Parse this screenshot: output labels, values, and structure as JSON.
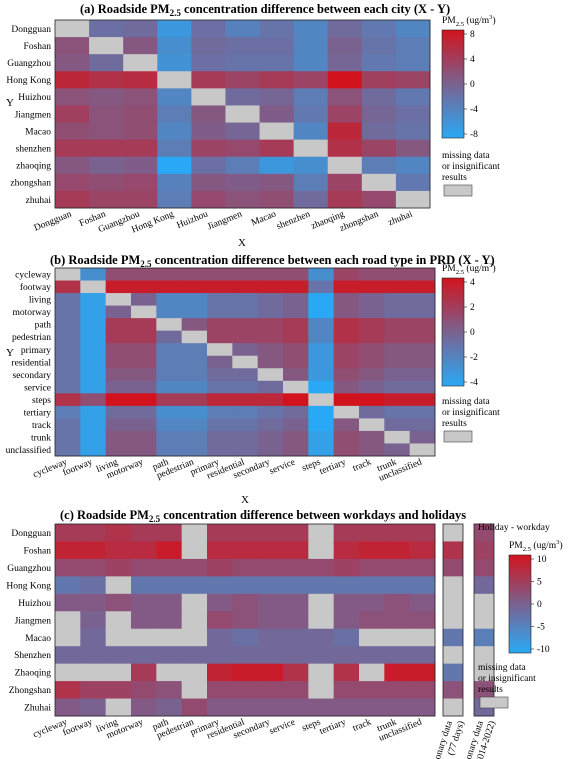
{
  "colors": {
    "missing": "#c8c8c8",
    "scale_low": "#29a9f5",
    "scale_mid": "#7a6290",
    "scale_high": "#d2131d"
  },
  "chart_data": [
    {
      "type": "heatmap",
      "panel": "(a)",
      "title_parts": [
        "(a) Roadside PM",
        "2.5",
        " concentration difference between each city (X - Y)"
      ],
      "xlabel": "X",
      "ylabel": "Y",
      "x": [
        "Dongguan",
        "Foshan",
        "Guangzhou",
        "Hong Kong",
        "Huizhou",
        "Jiangmen",
        "Macao",
        "shenzhen",
        "zhaoqing",
        "zhongshan",
        "zhuhai"
      ],
      "y": [
        "Dongguan",
        "Foshan",
        "Guangzhou",
        "Hong Kong",
        "Huizhou",
        "Jiangmen",
        "Macao",
        "shenzhen",
        "zhaoqing",
        "zhongshan",
        "zhuhai"
      ],
      "values": [
        [
          null,
          -1.5,
          -1,
          -6,
          -1.5,
          -3.5,
          -2,
          -4,
          -1,
          -2.5,
          -4
        ],
        [
          1.5,
          null,
          1,
          -5,
          -1,
          -1.5,
          -1.5,
          -4,
          0,
          -2,
          -3
        ],
        [
          1,
          -1,
          null,
          -5.5,
          -1.5,
          -2,
          -2,
          -4,
          -0.5,
          -2.5,
          -3
        ],
        [
          6,
          5,
          5.5,
          null,
          4,
          3,
          4,
          3,
          8,
          3.5,
          3
        ],
        [
          1.5,
          1,
          1.5,
          -4,
          null,
          -1,
          -0.5,
          -3,
          1.5,
          -1,
          -2.5
        ],
        [
          3.5,
          1.5,
          2,
          -3,
          1,
          null,
          0.5,
          -2.5,
          3,
          -0.5,
          -1.5
        ],
        [
          2,
          1.5,
          2,
          -4,
          0.5,
          -0.5,
          null,
          -4,
          6,
          -1,
          -2
        ],
        [
          4,
          4,
          4,
          -3,
          3,
          2.5,
          4,
          null,
          5,
          3,
          1
        ],
        [
          1,
          0,
          0.5,
          -8,
          -1.5,
          -3,
          -6,
          -5,
          null,
          -3,
          -4
        ],
        [
          2.5,
          2,
          2.5,
          -3.5,
          1,
          0.5,
          1,
          -3,
          3,
          null,
          -2.5
        ],
        [
          4,
          3,
          3,
          -3,
          2.5,
          1.5,
          2,
          -1,
          4,
          2.5,
          null
        ]
      ],
      "colorbar": {
        "label_parts": [
          "PM",
          "2.5",
          " (ug/m",
          "3",
          ")"
        ],
        "ticks": [
          "8",
          "4",
          "0",
          "-4",
          "-8"
        ],
        "range": [
          -8,
          8
        ]
      },
      "legend_missing": [
        "missing data",
        "or insignificant",
        "results"
      ]
    },
    {
      "type": "heatmap",
      "panel": "(b)",
      "title_parts": [
        "(b) Roadside PM",
        "2.5",
        " concentration difference between each road type in PRD (X - Y)"
      ],
      "xlabel": "X",
      "ylabel": "Y",
      "x": [
        "cycleway",
        "footway",
        "living",
        "motorway",
        "path",
        "pedestrian",
        "primary",
        "residential",
        "secondary",
        "service",
        "steps",
        "tertiary",
        "track",
        "trunk",
        "unclassified"
      ],
      "y": [
        "cycleway",
        "footway",
        "living",
        "motorway",
        "path",
        "pedestrian",
        "primary",
        "residential",
        "secondary",
        "service",
        "steps",
        "tertiary",
        "track",
        "trunk",
        "unclassified"
      ],
      "values": [
        [
          null,
          -2.5,
          1,
          1,
          1,
          1,
          1,
          1,
          1,
          1,
          -2.5,
          1.5,
          1,
          1,
          1
        ],
        [
          2.5,
          null,
          3.5,
          3.5,
          3.5,
          3.5,
          3.5,
          3.5,
          3.5,
          3.5,
          -1,
          3.5,
          3.5,
          3.5,
          3.5
        ],
        [
          -1,
          -3.5,
          null,
          0,
          -2,
          -2,
          -1,
          -1,
          -0.5,
          0,
          -4,
          0.5,
          0,
          -0.5,
          -0.5
        ],
        [
          -1,
          -3.5,
          0,
          null,
          -2,
          -2,
          -1,
          -1,
          -0.5,
          0,
          -4,
          0.5,
          0,
          -0.5,
          -0.5
        ],
        [
          -1,
          -3.5,
          2,
          2,
          null,
          0.5,
          1.5,
          1.5,
          1.5,
          2,
          -2,
          2.5,
          2,
          1.5,
          1.5
        ],
        [
          -1,
          -3.5,
          2,
          2,
          -0.5,
          null,
          1.5,
          1.5,
          1.5,
          2,
          -2,
          2.5,
          2,
          1.5,
          1.5
        ],
        [
          -1,
          -3.5,
          1,
          1,
          -1.5,
          -1.5,
          null,
          0,
          0.5,
          1,
          -3,
          1.5,
          1,
          0.5,
          0.5
        ],
        [
          -1,
          -3.5,
          1,
          1,
          -1.5,
          -1.5,
          0,
          null,
          0.5,
          1,
          -3,
          1.5,
          1,
          0.5,
          0.5
        ],
        [
          -1,
          -3.5,
          0.5,
          0.5,
          -1.5,
          -1.5,
          -0.5,
          -0.5,
          null,
          0.5,
          -3,
          1,
          0.5,
          0,
          0
        ],
        [
          -1,
          -3.5,
          0,
          0,
          -2,
          -2,
          -1,
          -1,
          -0.5,
          null,
          -4,
          0.5,
          0,
          -0.5,
          -0.5
        ],
        [
          2.5,
          1,
          4,
          4,
          2,
          2,
          3,
          3,
          3,
          4,
          null,
          4,
          4,
          3.5,
          3.5
        ],
        [
          -1.5,
          -3.5,
          -0.5,
          -0.5,
          -2.5,
          -2.5,
          -1.5,
          -1.5,
          -1,
          -0.5,
          -4,
          null,
          -0.5,
          -1,
          -1
        ],
        [
          -1,
          -3.5,
          0,
          0,
          -2,
          -2,
          -1,
          -1,
          -0.5,
          0,
          -4,
          0.5,
          null,
          -0.5,
          -0.5
        ],
        [
          -1,
          -3.5,
          0.5,
          0.5,
          -1.5,
          -1.5,
          -0.5,
          -0.5,
          0,
          0.5,
          -3.5,
          1,
          0.5,
          null,
          0
        ],
        [
          -1,
          -3.5,
          0.5,
          0.5,
          -1.5,
          -1.5,
          -0.5,
          -0.5,
          0,
          0.5,
          -3.5,
          1,
          0.5,
          0,
          null
        ]
      ],
      "colorbar": {
        "label_parts": [
          "PM",
          "2.5",
          " (ug/m",
          "3",
          ")"
        ],
        "ticks": [
          "4",
          "2",
          "0",
          "-2",
          "-4"
        ],
        "range": [
          -4,
          4
        ]
      },
      "legend_missing": [
        "missing data",
        "or insignificant",
        "results"
      ]
    },
    {
      "type": "heatmap",
      "panel": "(c)",
      "title_parts": [
        "(c) Roadside PM",
        "2.5",
        " concentration difference between workdays and holidays"
      ],
      "x": [
        "cycleway",
        "footway",
        "living",
        "motorway",
        "path",
        "pedestrian",
        "primary",
        "residential",
        "secondary",
        "service",
        "steps",
        "tertiary",
        "track",
        "trunk",
        "unclassified"
      ],
      "y": [
        "Dongguan",
        "Foshan",
        "Guangzhou",
        "Hong Kong",
        "Huizhou",
        "Jiangmen",
        "Macao",
        "Shenzhen",
        "Zhaoqing",
        "Zhongshan",
        "Zhuhai"
      ],
      "values": [
        [
          5,
          5,
          6,
          5,
          5,
          null,
          5,
          5,
          5,
          5,
          null,
          5,
          5,
          5,
          5
        ],
        [
          8,
          8,
          7,
          7,
          9,
          null,
          7,
          7,
          7,
          7,
          null,
          7,
          8,
          8,
          7
        ],
        [
          3,
          3,
          4,
          3,
          3,
          3,
          4,
          3,
          3,
          3,
          3,
          4,
          3,
          3,
          3
        ],
        [
          -3,
          -2,
          null,
          -3,
          -3,
          -3,
          -3,
          -3,
          -3,
          -3,
          -3,
          -3,
          -3,
          -3,
          -3
        ],
        [
          1,
          1,
          2,
          1,
          1,
          null,
          1,
          2,
          1,
          1,
          null,
          1,
          1,
          2,
          1
        ],
        [
          null,
          0,
          null,
          1,
          1,
          null,
          3,
          2,
          1,
          1,
          null,
          1,
          2,
          2,
          2
        ],
        [
          null,
          -1,
          null,
          null,
          null,
          null,
          -1,
          -2,
          -1,
          -1,
          -1,
          -2,
          null,
          null,
          null
        ],
        [
          -1,
          -1,
          -1,
          -1,
          -1,
          -1,
          -1,
          -1,
          -1,
          -1,
          -1,
          -1,
          -1,
          -1,
          -1
        ],
        [
          null,
          null,
          null,
          5,
          null,
          null,
          8,
          9,
          9,
          6,
          null,
          6,
          null,
          9,
          9
        ],
        [
          6,
          4,
          4,
          3,
          2,
          null,
          3,
          3,
          3,
          3,
          null,
          3,
          3,
          3,
          3
        ],
        [
          1,
          0,
          null,
          1,
          0,
          3,
          1,
          1,
          1,
          1,
          1,
          1,
          1,
          1,
          1
        ]
      ],
      "x_extra": [
        "Stationary data",
        "(77 days)",
        "Stationary data",
        "(2014-2022)"
      ],
      "stationary_77_days": [
        null,
        6,
        3,
        null,
        null,
        null,
        -3,
        null,
        -3,
        2,
        null
      ],
      "stationary_2014_2022": [
        3,
        4,
        3,
        -1,
        null,
        null,
        -4,
        null,
        null,
        2,
        -1
      ],
      "colorbar": {
        "header": "Holiday - workday",
        "label_parts": [
          "PM",
          "2.5",
          " (ug/m",
          "3",
          ")"
        ],
        "ticks": [
          "10",
          "5",
          "0",
          "-5",
          "-10"
        ],
        "range": [
          -10,
          10
        ]
      },
      "legend_missing": [
        "missing data",
        "or insignificant",
        "results"
      ]
    }
  ]
}
